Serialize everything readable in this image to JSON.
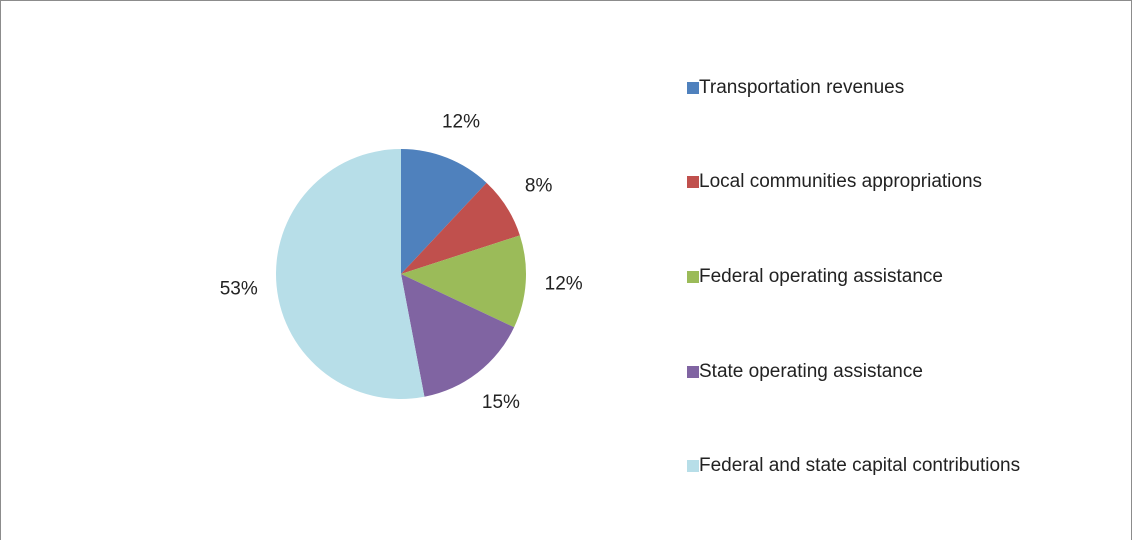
{
  "chart_data": {
    "type": "pie",
    "categories": [
      "Transportation revenues",
      "Local communities appropriations",
      "Federal operating assistance",
      "State operating assistance",
      "Federal and state capital contributions"
    ],
    "values": [
      12,
      8,
      12,
      15,
      53
    ],
    "value_labels": [
      "12%",
      "8%",
      "12%",
      "15%",
      "53%"
    ],
    "colors": [
      "#4f81bd",
      "#c0504d",
      "#9bbb59",
      "#8064a2",
      "#b7dee8"
    ],
    "legend": "right"
  }
}
